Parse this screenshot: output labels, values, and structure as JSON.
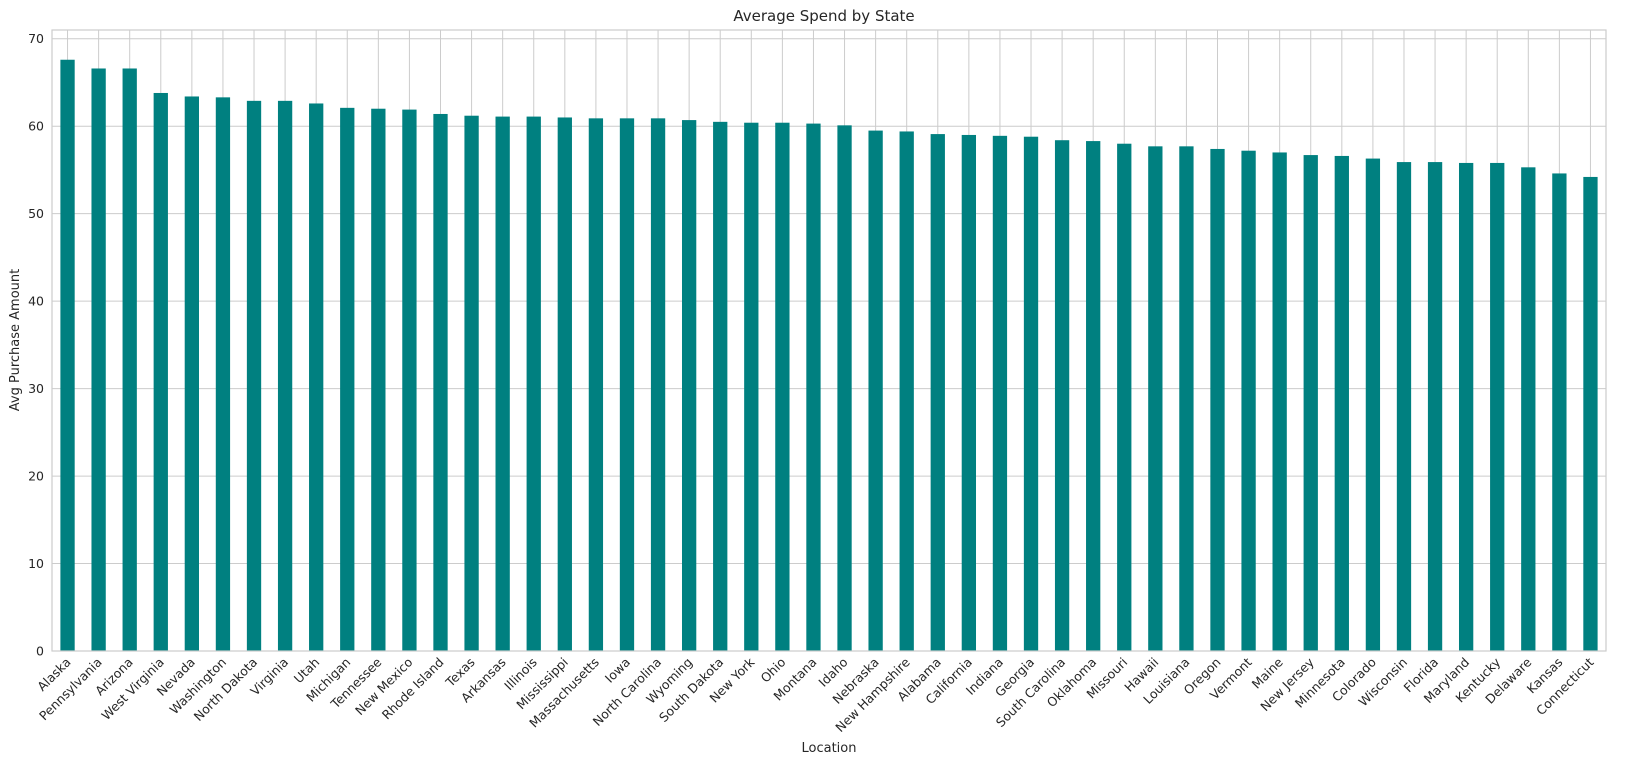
{
  "chart_data": {
    "type": "bar",
    "title": "Average Spend by State",
    "xlabel": "Location",
    "ylabel": "Avg Purchase Amount",
    "ylim": [
      0,
      71
    ],
    "yticks": [
      0,
      10,
      20,
      30,
      40,
      50,
      60,
      70
    ],
    "grid": true,
    "bar_color": "#008080",
    "categories": [
      "Alaska",
      "Pennsylvania",
      "Arizona",
      "West Virginia",
      "Nevada",
      "Washington",
      "North Dakota",
      "Virginia",
      "Utah",
      "Michigan",
      "Tennessee",
      "New Mexico",
      "Rhode Island",
      "Texas",
      "Arkansas",
      "Illinois",
      "Mississippi",
      "Massachusetts",
      "Iowa",
      "North Carolina",
      "Wyoming",
      "South Dakota",
      "New York",
      "Ohio",
      "Montana",
      "Idaho",
      "Nebraska",
      "New Hampshire",
      "Alabama",
      "California",
      "Indiana",
      "Georgia",
      "South Carolina",
      "Oklahoma",
      "Missouri",
      "Hawaii",
      "Louisiana",
      "Oregon",
      "Vermont",
      "Maine",
      "New Jersey",
      "Minnesota",
      "Colorado",
      "Wisconsin",
      "Florida",
      "Maryland",
      "Kentucky",
      "Delaware",
      "Kansas",
      "Connecticut"
    ],
    "values": [
      67.6,
      66.6,
      66.6,
      63.8,
      63.4,
      63.3,
      62.9,
      62.9,
      62.6,
      62.1,
      62.0,
      61.9,
      61.4,
      61.2,
      61.1,
      61.1,
      61.0,
      60.9,
      60.9,
      60.9,
      60.7,
      60.5,
      60.4,
      60.4,
      60.3,
      60.1,
      59.5,
      59.4,
      59.1,
      59.0,
      58.9,
      58.8,
      58.4,
      58.3,
      58.0,
      57.7,
      57.7,
      57.4,
      57.2,
      57.0,
      56.7,
      56.6,
      56.3,
      55.9,
      55.9,
      55.8,
      55.8,
      55.3,
      54.6,
      54.2
    ]
  }
}
